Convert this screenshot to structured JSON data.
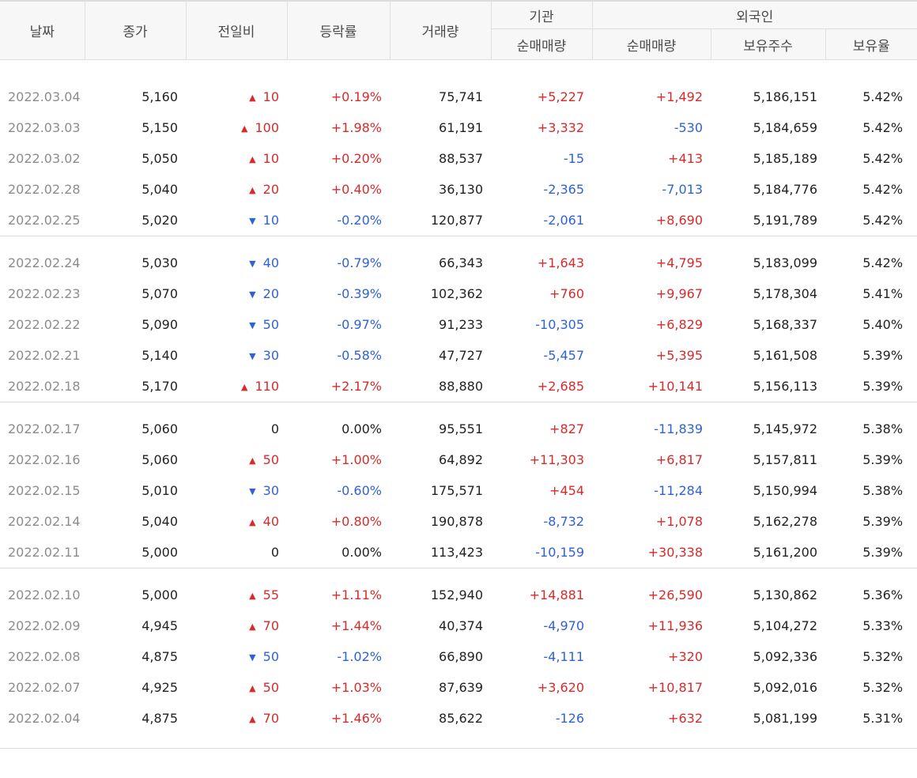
{
  "headers": {
    "date": "날짜",
    "close": "종가",
    "change": "전일비",
    "rate": "등락률",
    "volume": "거래량",
    "inst_group": "기관",
    "inst_net": "순매매량",
    "foreign_group": "외국인",
    "foreign_net": "순매매량",
    "foreign_hold": "보유주수",
    "foreign_ratio": "보유율"
  },
  "colors": {
    "up": "#d82a2a",
    "down": "#2f62d6",
    "neutral": "#222222",
    "date": "#8c8c8c"
  },
  "icons": {
    "up": "triangle-up-icon",
    "down": "triangle-down-icon"
  },
  "groups": [
    [
      {
        "date": "2022.03.04",
        "close": "5,160",
        "dir": "up",
        "change": "10",
        "rate": "+0.19%",
        "volume": "75,741",
        "inst": "+5,227",
        "frgn": "+1,492",
        "hold": "5,186,151",
        "ratio": "5.42%"
      },
      {
        "date": "2022.03.03",
        "close": "5,150",
        "dir": "up",
        "change": "100",
        "rate": "+1.98%",
        "volume": "61,191",
        "inst": "+3,332",
        "frgn": "-530",
        "hold": "5,184,659",
        "ratio": "5.42%"
      },
      {
        "date": "2022.03.02",
        "close": "5,050",
        "dir": "up",
        "change": "10",
        "rate": "+0.20%",
        "volume": "88,537",
        "inst": "-15",
        "frgn": "+413",
        "hold": "5,185,189",
        "ratio": "5.42%"
      },
      {
        "date": "2022.02.28",
        "close": "5,040",
        "dir": "up",
        "change": "20",
        "rate": "+0.40%",
        "volume": "36,130",
        "inst": "-2,365",
        "frgn": "-7,013",
        "hold": "5,184,776",
        "ratio": "5.42%"
      },
      {
        "date": "2022.02.25",
        "close": "5,020",
        "dir": "down",
        "change": "10",
        "rate": "-0.20%",
        "volume": "120,877",
        "inst": "-2,061",
        "frgn": "+8,690",
        "hold": "5,191,789",
        "ratio": "5.42%"
      }
    ],
    [
      {
        "date": "2022.02.24",
        "close": "5,030",
        "dir": "down",
        "change": "40",
        "rate": "-0.79%",
        "volume": "66,343",
        "inst": "+1,643",
        "frgn": "+4,795",
        "hold": "5,183,099",
        "ratio": "5.42%"
      },
      {
        "date": "2022.02.23",
        "close": "5,070",
        "dir": "down",
        "change": "20",
        "rate": "-0.39%",
        "volume": "102,362",
        "inst": "+760",
        "frgn": "+9,967",
        "hold": "5,178,304",
        "ratio": "5.41%"
      },
      {
        "date": "2022.02.22",
        "close": "5,090",
        "dir": "down",
        "change": "50",
        "rate": "-0.97%",
        "volume": "91,233",
        "inst": "-10,305",
        "frgn": "+6,829",
        "hold": "5,168,337",
        "ratio": "5.40%"
      },
      {
        "date": "2022.02.21",
        "close": "5,140",
        "dir": "down",
        "change": "30",
        "rate": "-0.58%",
        "volume": "47,727",
        "inst": "-5,457",
        "frgn": "+5,395",
        "hold": "5,161,508",
        "ratio": "5.39%"
      },
      {
        "date": "2022.02.18",
        "close": "5,170",
        "dir": "up",
        "change": "110",
        "rate": "+2.17%",
        "volume": "88,880",
        "inst": "+2,685",
        "frgn": "+10,141",
        "hold": "5,156,113",
        "ratio": "5.39%"
      }
    ],
    [
      {
        "date": "2022.02.17",
        "close": "5,060",
        "dir": "none",
        "change": "0",
        "rate": "0.00%",
        "volume": "95,551",
        "inst": "+827",
        "frgn": "-11,839",
        "hold": "5,145,972",
        "ratio": "5.38%"
      },
      {
        "date": "2022.02.16",
        "close": "5,060",
        "dir": "up",
        "change": "50",
        "rate": "+1.00%",
        "volume": "64,892",
        "inst": "+11,303",
        "frgn": "+6,817",
        "hold": "5,157,811",
        "ratio": "5.39%"
      },
      {
        "date": "2022.02.15",
        "close": "5,010",
        "dir": "down",
        "change": "30",
        "rate": "-0.60%",
        "volume": "175,571",
        "inst": "+454",
        "frgn": "-11,284",
        "hold": "5,150,994",
        "ratio": "5.38%"
      },
      {
        "date": "2022.02.14",
        "close": "5,040",
        "dir": "up",
        "change": "40",
        "rate": "+0.80%",
        "volume": "190,878",
        "inst": "-8,732",
        "frgn": "+1,078",
        "hold": "5,162,278",
        "ratio": "5.39%"
      },
      {
        "date": "2022.02.11",
        "close": "5,000",
        "dir": "none",
        "change": "0",
        "rate": "0.00%",
        "volume": "113,423",
        "inst": "-10,159",
        "frgn": "+30,338",
        "hold": "5,161,200",
        "ratio": "5.39%"
      }
    ],
    [
      {
        "date": "2022.02.10",
        "close": "5,000",
        "dir": "up",
        "change": "55",
        "rate": "+1.11%",
        "volume": "152,940",
        "inst": "+14,881",
        "frgn": "+26,590",
        "hold": "5,130,862",
        "ratio": "5.36%"
      },
      {
        "date": "2022.02.09",
        "close": "4,945",
        "dir": "up",
        "change": "70",
        "rate": "+1.44%",
        "volume": "40,374",
        "inst": "-4,970",
        "frgn": "+11,936",
        "hold": "5,104,272",
        "ratio": "5.33%"
      },
      {
        "date": "2022.02.08",
        "close": "4,875",
        "dir": "down",
        "change": "50",
        "rate": "-1.02%",
        "volume": "66,890",
        "inst": "-4,111",
        "frgn": "+320",
        "hold": "5,092,336",
        "ratio": "5.32%"
      },
      {
        "date": "2022.02.07",
        "close": "4,925",
        "dir": "up",
        "change": "50",
        "rate": "+1.03%",
        "volume": "87,639",
        "inst": "+3,620",
        "frgn": "+10,817",
        "hold": "5,092,016",
        "ratio": "5.32%"
      },
      {
        "date": "2022.02.04",
        "close": "4,875",
        "dir": "up",
        "change": "70",
        "rate": "+1.46%",
        "volume": "85,622",
        "inst": "-126",
        "frgn": "+632",
        "hold": "5,081,199",
        "ratio": "5.31%"
      }
    ]
  ]
}
